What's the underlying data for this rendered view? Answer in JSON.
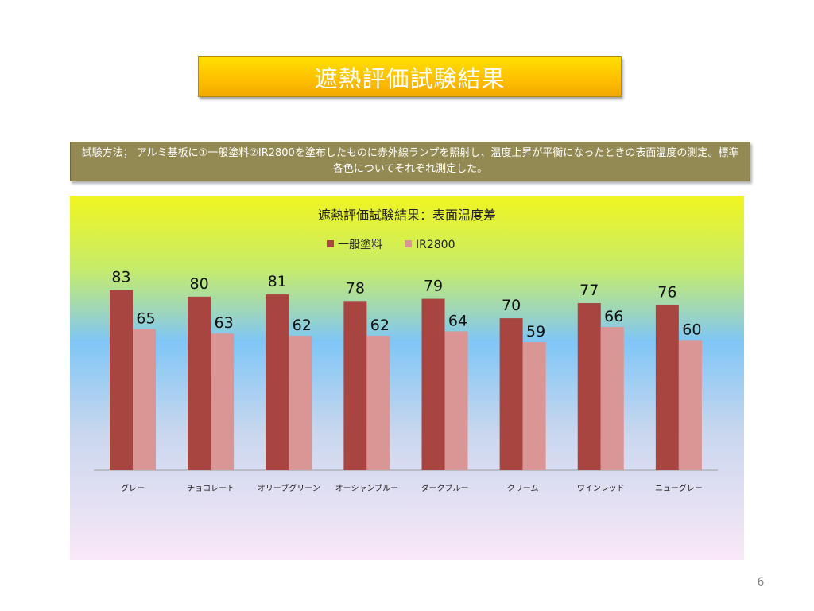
{
  "slide": {
    "title": "遮熱評価試験結果",
    "method": "試験方法； アルミ基板に①一般塗料②IR2800を塗布したものに赤外線ランプを照射し、温度上昇が平衡になったときの表面温度の測定。標準各色についてそれぞれ測定した。",
    "page_number": "6"
  },
  "chart_data": {
    "type": "bar",
    "title": "遮熱評価試験結果：表面温度差",
    "categories": [
      "グレー",
      "チョコレート",
      "オリーブグリーン",
      "オーシャンブルー",
      "ダークブルー",
      "クリーム",
      "ワインレッド",
      "ニューグレー"
    ],
    "series": [
      {
        "name": "一般塗料",
        "values": [
          83,
          80,
          81,
          78,
          79,
          70,
          77,
          76
        ],
        "color": "#a84541"
      },
      {
        "name": "IR2800",
        "values": [
          65,
          63,
          62,
          62,
          64,
          59,
          66,
          60
        ],
        "color": "#d99694"
      }
    ],
    "ylim": [
      0,
      90
    ],
    "legend_position": "top",
    "grid": false
  }
}
